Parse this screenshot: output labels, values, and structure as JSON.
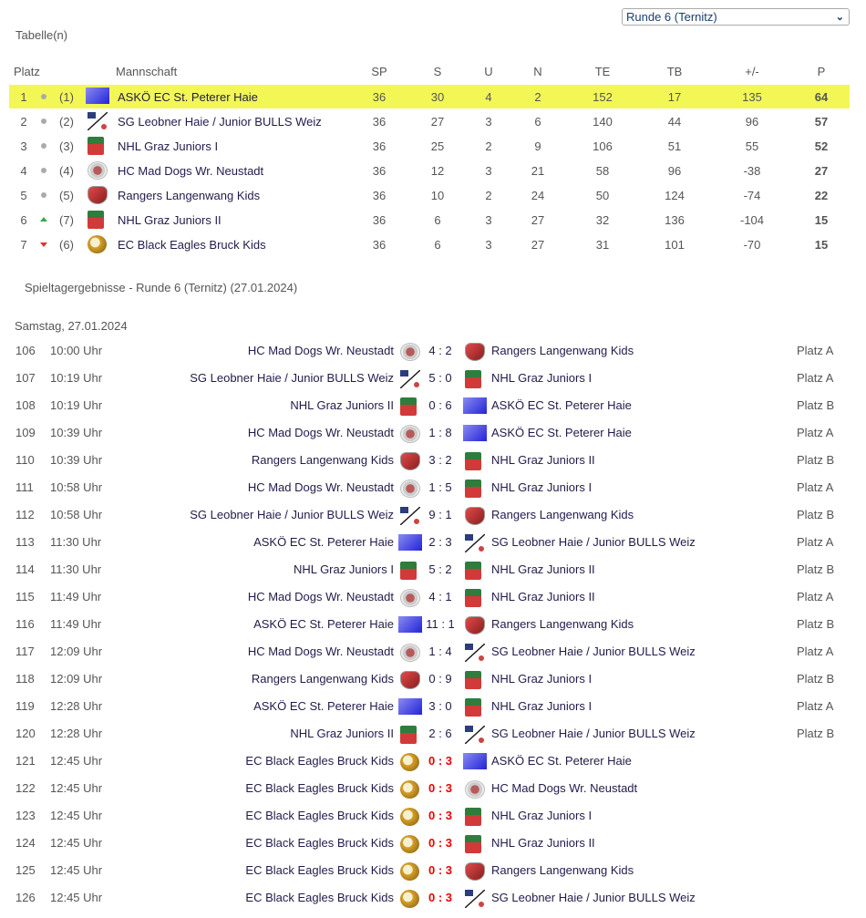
{
  "round_select": {
    "value": "Runde 6 (Ternitz)"
  },
  "standings": {
    "title": "Tabelle(n)",
    "headers": {
      "platz": "Platz",
      "team": "Mannschaft",
      "sp": "SP",
      "s": "S",
      "u": "U",
      "n": "N",
      "te": "TE",
      "tb": "TB",
      "diff": "+/-",
      "p": "P"
    },
    "highlight_color": "#f2f756",
    "rows": [
      {
        "pos": "1",
        "trend": "same",
        "prev": "(1)",
        "logo": "asko",
        "team": "ASKÖ EC St. Peterer Haie",
        "sp": "36",
        "s": "30",
        "u": "4",
        "n": "2",
        "te": "152",
        "tb": "17",
        "diff": "135",
        "p": "64",
        "highlight": true
      },
      {
        "pos": "2",
        "trend": "same",
        "prev": "(2)",
        "logo": "sg",
        "team": "SG Leobner Haie / Junior BULLS Weiz",
        "sp": "36",
        "s": "27",
        "u": "3",
        "n": "6",
        "te": "140",
        "tb": "44",
        "diff": "96",
        "p": "57"
      },
      {
        "pos": "3",
        "trend": "same",
        "prev": "(3)",
        "logo": "nhl",
        "team": "NHL Graz Juniors I",
        "sp": "36",
        "s": "25",
        "u": "2",
        "n": "9",
        "te": "106",
        "tb": "51",
        "diff": "55",
        "p": "52"
      },
      {
        "pos": "4",
        "trend": "same",
        "prev": "(4)",
        "logo": "mad",
        "team": "HC Mad Dogs Wr. Neustadt",
        "sp": "36",
        "s": "12",
        "u": "3",
        "n": "21",
        "te": "58",
        "tb": "96",
        "diff": "-38",
        "p": "27"
      },
      {
        "pos": "5",
        "trend": "same",
        "prev": "(5)",
        "logo": "rangers",
        "team": "Rangers Langenwang Kids",
        "sp": "36",
        "s": "10",
        "u": "2",
        "n": "24",
        "te": "50",
        "tb": "124",
        "diff": "-74",
        "p": "22"
      },
      {
        "pos": "6",
        "trend": "up",
        "prev": "(7)",
        "logo": "nhl",
        "team": "NHL Graz Juniors II",
        "sp": "36",
        "s": "6",
        "u": "3",
        "n": "27",
        "te": "32",
        "tb": "136",
        "diff": "-104",
        "p": "15"
      },
      {
        "pos": "7",
        "trend": "down",
        "prev": "(6)",
        "logo": "eagles",
        "team": "EC Black Eagles Bruck Kids",
        "sp": "36",
        "s": "6",
        "u": "3",
        "n": "27",
        "te": "31",
        "tb": "101",
        "diff": "-70",
        "p": "15"
      }
    ]
  },
  "results": {
    "title": "Spieltagergebnisse - Runde 6 (Ternitz) (27.01.2024)",
    "day": "Samstag, 27.01.2024",
    "matches": [
      {
        "no": "106",
        "time": "10:00 Uhr",
        "home": "HC Mad Dogs Wr. Neustadt",
        "hl": "mad",
        "score": "4 : 2",
        "away": "Rangers Langenwang Kids",
        "al": "rangers",
        "field": "Platz A"
      },
      {
        "no": "107",
        "time": "10:19 Uhr",
        "home": "SG Leobner Haie / Junior BULLS Weiz",
        "hl": "sg",
        "score": "5 : 0",
        "away": "NHL Graz Juniors I",
        "al": "nhl",
        "field": "Platz A"
      },
      {
        "no": "108",
        "time": "10:19 Uhr",
        "home": "NHL Graz Juniors II",
        "hl": "nhl",
        "score": "0 : 6",
        "away": "ASKÖ EC St. Peterer Haie",
        "al": "asko",
        "field": "Platz B"
      },
      {
        "no": "109",
        "time": "10:39 Uhr",
        "home": "HC Mad Dogs Wr. Neustadt",
        "hl": "mad",
        "score": "1 : 8",
        "away": "ASKÖ EC St. Peterer Haie",
        "al": "asko",
        "field": "Platz A"
      },
      {
        "no": "110",
        "time": "10:39 Uhr",
        "home": "Rangers Langenwang Kids",
        "hl": "rangers",
        "score": "3 : 2",
        "away": "NHL Graz Juniors II",
        "al": "nhl",
        "field": "Platz B"
      },
      {
        "no": "111",
        "time": "10:58 Uhr",
        "home": "HC Mad Dogs Wr. Neustadt",
        "hl": "mad",
        "score": "1 : 5",
        "away": "NHL Graz Juniors I",
        "al": "nhl",
        "field": "Platz A"
      },
      {
        "no": "112",
        "time": "10:58 Uhr",
        "home": "SG Leobner Haie / Junior BULLS Weiz",
        "hl": "sg",
        "score": "9 : 1",
        "away": "Rangers Langenwang Kids",
        "al": "rangers",
        "field": "Platz B"
      },
      {
        "no": "113",
        "time": "11:30 Uhr",
        "home": "ASKÖ EC St. Peterer Haie",
        "hl": "asko",
        "score": "2 : 3",
        "away": "SG Leobner Haie / Junior BULLS Weiz",
        "al": "sg",
        "field": "Platz A"
      },
      {
        "no": "114",
        "time": "11:30 Uhr",
        "home": "NHL Graz Juniors I",
        "hl": "nhl",
        "score": "5 : 2",
        "away": "NHL Graz Juniors II",
        "al": "nhl",
        "field": "Platz B"
      },
      {
        "no": "115",
        "time": "11:49 Uhr",
        "home": "HC Mad Dogs Wr. Neustadt",
        "hl": "mad",
        "score": "4 : 1",
        "away": "NHL Graz Juniors II",
        "al": "nhl",
        "field": "Platz A"
      },
      {
        "no": "116",
        "time": "11:49 Uhr",
        "home": "ASKÖ EC St. Peterer Haie",
        "hl": "asko",
        "score": "11 : 1",
        "away": "Rangers Langenwang Kids",
        "al": "rangers",
        "field": "Platz B"
      },
      {
        "no": "117",
        "time": "12:09 Uhr",
        "home": "HC Mad Dogs Wr. Neustadt",
        "hl": "mad",
        "score": "1 : 4",
        "away": "SG Leobner Haie / Junior BULLS Weiz",
        "al": "sg",
        "field": "Platz A"
      },
      {
        "no": "118",
        "time": "12:09 Uhr",
        "home": "Rangers Langenwang Kids",
        "hl": "rangers",
        "score": "0 : 9",
        "away": "NHL Graz Juniors I",
        "al": "nhl",
        "field": "Platz B"
      },
      {
        "no": "119",
        "time": "12:28 Uhr",
        "home": "ASKÖ EC St. Peterer Haie",
        "hl": "asko",
        "score": "3 : 0",
        "away": "NHL Graz Juniors I",
        "al": "nhl",
        "field": "Platz A"
      },
      {
        "no": "120",
        "time": "12:28 Uhr",
        "home": "NHL Graz Juniors II",
        "hl": "nhl",
        "score": "2 : 6",
        "away": "SG Leobner Haie / Junior BULLS Weiz",
        "al": "sg",
        "field": "Platz B"
      },
      {
        "no": "121",
        "time": "12:45 Uhr",
        "home": "EC Black Eagles Bruck Kids",
        "hl": "eagles",
        "score": "0 : 3",
        "forfeit": true,
        "away": "ASKÖ EC St. Peterer Haie",
        "al": "asko",
        "field": ""
      },
      {
        "no": "122",
        "time": "12:45 Uhr",
        "home": "EC Black Eagles Bruck Kids",
        "hl": "eagles",
        "score": "0 : 3",
        "forfeit": true,
        "away": "HC Mad Dogs Wr. Neustadt",
        "al": "mad",
        "field": ""
      },
      {
        "no": "123",
        "time": "12:45 Uhr",
        "home": "EC Black Eagles Bruck Kids",
        "hl": "eagles",
        "score": "0 : 3",
        "forfeit": true,
        "away": "NHL Graz Juniors I",
        "al": "nhl",
        "field": ""
      },
      {
        "no": "124",
        "time": "12:45 Uhr",
        "home": "EC Black Eagles Bruck Kids",
        "hl": "eagles",
        "score": "0 : 3",
        "forfeit": true,
        "away": "NHL Graz Juniors II",
        "al": "nhl",
        "field": ""
      },
      {
        "no": "125",
        "time": "12:45 Uhr",
        "home": "EC Black Eagles Bruck Kids",
        "hl": "eagles",
        "score": "0 : 3",
        "forfeit": true,
        "away": "Rangers Langenwang Kids",
        "al": "rangers",
        "field": ""
      },
      {
        "no": "126",
        "time": "12:45 Uhr",
        "home": "EC Black Eagles Bruck Kids",
        "hl": "eagles",
        "score": "0 : 3",
        "forfeit": true,
        "away": "SG Leobner Haie / Junior BULLS Weiz",
        "al": "sg",
        "field": ""
      }
    ]
  }
}
